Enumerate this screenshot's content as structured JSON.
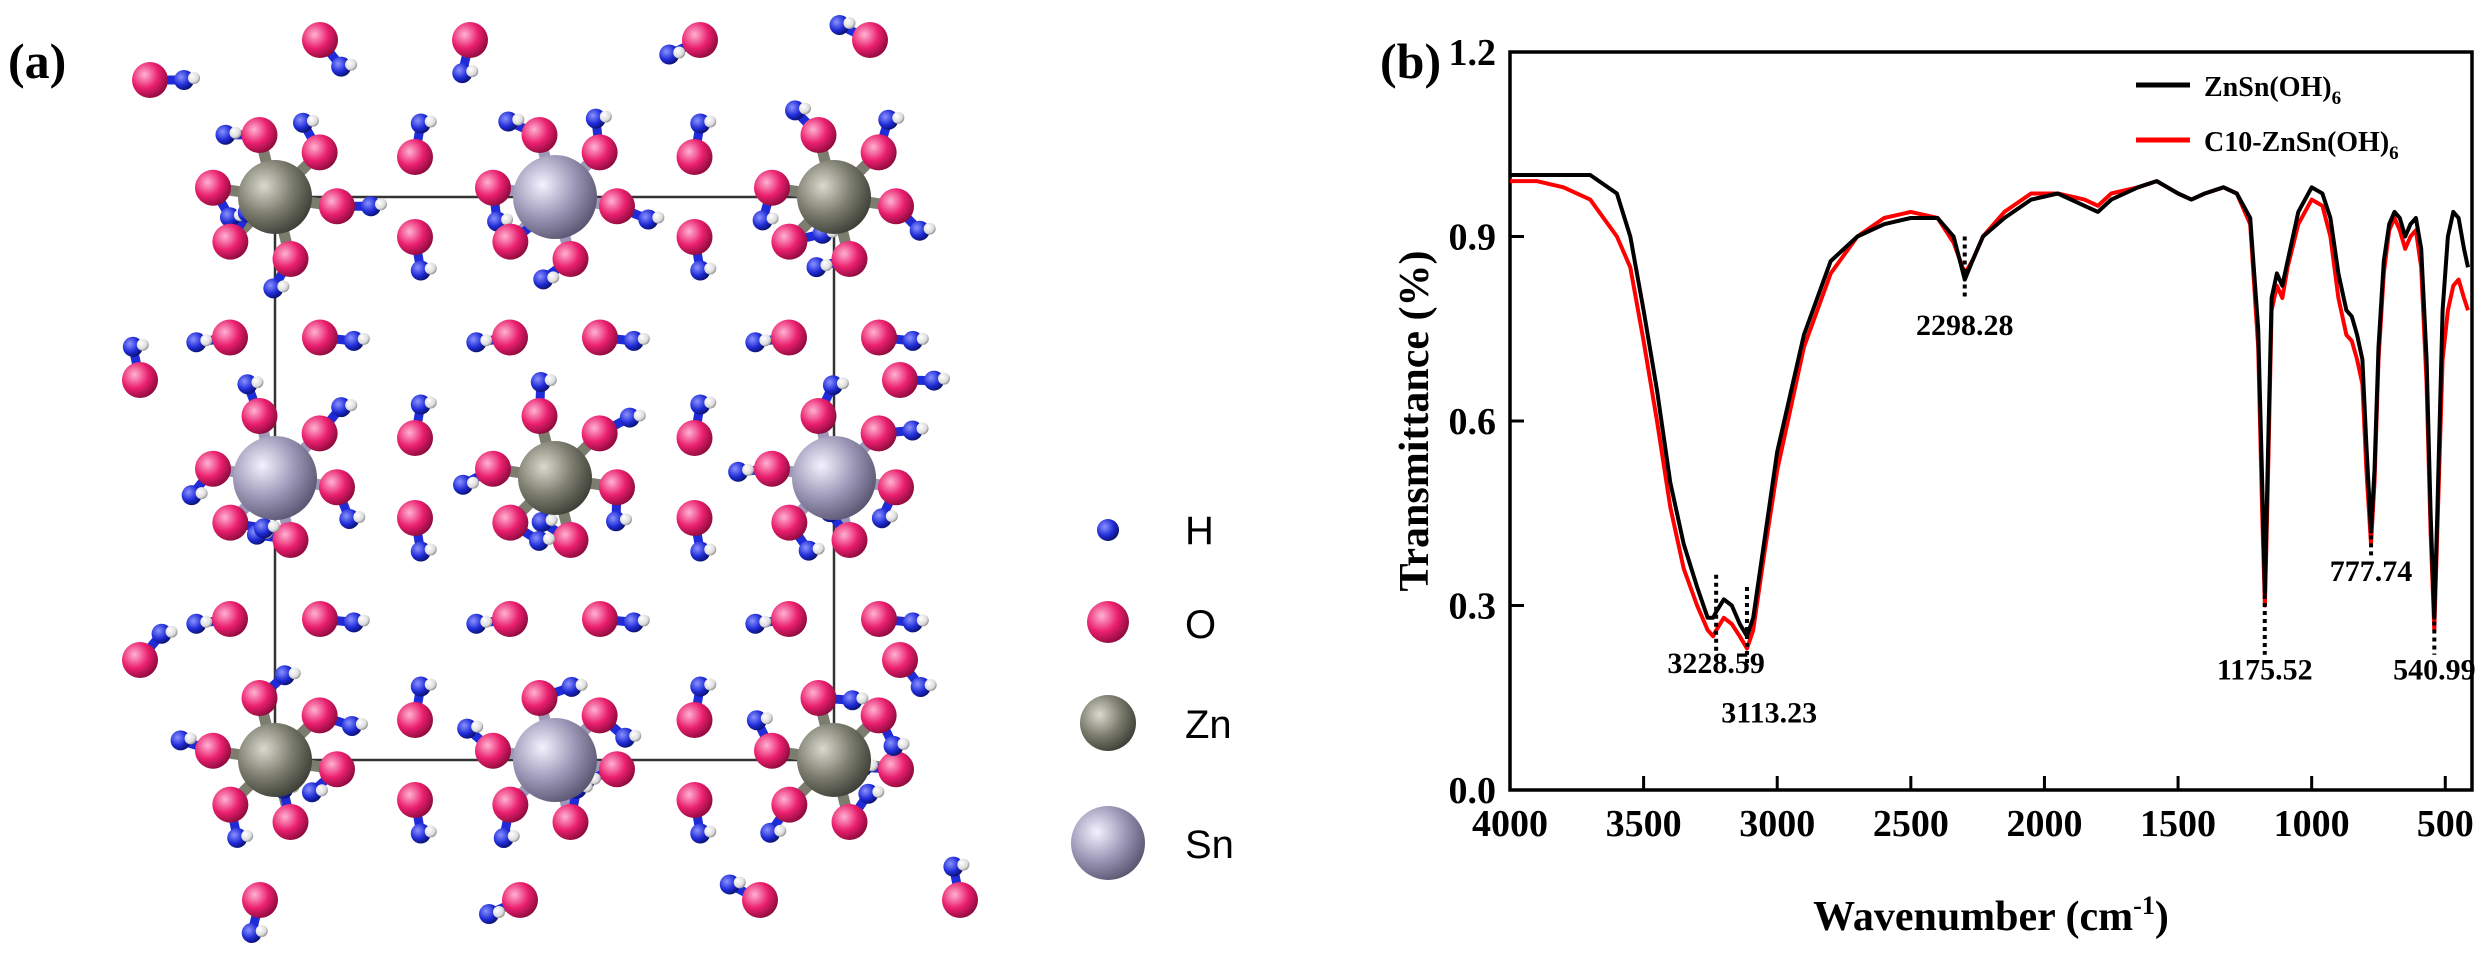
{
  "panel_a": {
    "label": "(a)",
    "legend": [
      {
        "label": "H",
        "color": "#1f2bd6"
      },
      {
        "label": "O",
        "color": "#ea1f6e"
      },
      {
        "label": "Zn",
        "color": "#7c7d6f"
      },
      {
        "label": "Sn",
        "color": "#9d98b7"
      }
    ]
  },
  "panel_b": {
    "label": "(b)",
    "legend": [
      {
        "label": "ZnSn(OH)",
        "sub": "6",
        "color": "#000000"
      },
      {
        "label": "C10-ZnSn(OH)",
        "sub": "6",
        "color": "#ff0000"
      }
    ],
    "peaks": [
      "3228.59",
      "3113.23",
      "2298.28",
      "1175.52",
      "777.74",
      "540.99"
    ]
  },
  "chart_data": {
    "type": "line",
    "title": "",
    "xlabel": "Wavenumber (cm-1)",
    "ylabel": "Transmittance (%)",
    "xlim": [
      4000,
      400
    ],
    "ylim": [
      0.0,
      1.2
    ],
    "xticks": [
      4000,
      3500,
      3000,
      2500,
      2000,
      1500,
      1000,
      500
    ],
    "yticks": [
      "0.0",
      "0.3",
      "0.6",
      "0.9",
      "1.2"
    ],
    "legend_position": "top-right",
    "series": [
      {
        "name": "ZnSn(OH)6",
        "color": "#000000",
        "points": [
          [
            4000,
            1.0
          ],
          [
            3800,
            1.0
          ],
          [
            3700,
            1.0
          ],
          [
            3600,
            0.97
          ],
          [
            3550,
            0.9
          ],
          [
            3500,
            0.78
          ],
          [
            3450,
            0.65
          ],
          [
            3400,
            0.5
          ],
          [
            3350,
            0.4
          ],
          [
            3300,
            0.33
          ],
          [
            3260,
            0.28
          ],
          [
            3240,
            0.28
          ],
          [
            3228,
            0.29
          ],
          [
            3200,
            0.31
          ],
          [
            3170,
            0.3
          ],
          [
            3140,
            0.27
          ],
          [
            3113,
            0.25
          ],
          [
            3090,
            0.28
          ],
          [
            3050,
            0.4
          ],
          [
            3000,
            0.55
          ],
          [
            2900,
            0.74
          ],
          [
            2800,
            0.86
          ],
          [
            2700,
            0.9
          ],
          [
            2600,
            0.92
          ],
          [
            2500,
            0.93
          ],
          [
            2400,
            0.93
          ],
          [
            2340,
            0.9
          ],
          [
            2298,
            0.83
          ],
          [
            2270,
            0.86
          ],
          [
            2230,
            0.9
          ],
          [
            2150,
            0.93
          ],
          [
            2050,
            0.96
          ],
          [
            1950,
            0.97
          ],
          [
            1850,
            0.95
          ],
          [
            1800,
            0.94
          ],
          [
            1750,
            0.96
          ],
          [
            1650,
            0.98
          ],
          [
            1580,
            0.99
          ],
          [
            1500,
            0.97
          ],
          [
            1450,
            0.96
          ],
          [
            1400,
            0.97
          ],
          [
            1330,
            0.98
          ],
          [
            1280,
            0.97
          ],
          [
            1230,
            0.93
          ],
          [
            1200,
            0.75
          ],
          [
            1185,
            0.5
          ],
          [
            1175,
            0.32
          ],
          [
            1165,
            0.52
          ],
          [
            1150,
            0.8
          ],
          [
            1130,
            0.84
          ],
          [
            1110,
            0.82
          ],
          [
            1090,
            0.86
          ],
          [
            1050,
            0.94
          ],
          [
            1000,
            0.98
          ],
          [
            960,
            0.97
          ],
          [
            930,
            0.93
          ],
          [
            900,
            0.84
          ],
          [
            870,
            0.78
          ],
          [
            850,
            0.77
          ],
          [
            830,
            0.74
          ],
          [
            810,
            0.7
          ],
          [
            795,
            0.56
          ],
          [
            778,
            0.42
          ],
          [
            765,
            0.52
          ],
          [
            750,
            0.72
          ],
          [
            730,
            0.86
          ],
          [
            710,
            0.92
          ],
          [
            690,
            0.94
          ],
          [
            670,
            0.93
          ],
          [
            650,
            0.9
          ],
          [
            630,
            0.92
          ],
          [
            610,
            0.93
          ],
          [
            590,
            0.88
          ],
          [
            570,
            0.7
          ],
          [
            555,
            0.45
          ],
          [
            541,
            0.28
          ],
          [
            530,
            0.45
          ],
          [
            510,
            0.78
          ],
          [
            490,
            0.9
          ],
          [
            470,
            0.94
          ],
          [
            450,
            0.93
          ],
          [
            430,
            0.88
          ],
          [
            415,
            0.85
          ]
        ]
      },
      {
        "name": "C10-ZnSn(OH)6",
        "color": "#ff0000",
        "points": [
          [
            4000,
            0.99
          ],
          [
            3900,
            0.99
          ],
          [
            3800,
            0.98
          ],
          [
            3700,
            0.96
          ],
          [
            3600,
            0.9
          ],
          [
            3550,
            0.85
          ],
          [
            3500,
            0.73
          ],
          [
            3450,
            0.6
          ],
          [
            3400,
            0.46
          ],
          [
            3350,
            0.36
          ],
          [
            3300,
            0.3
          ],
          [
            3260,
            0.26
          ],
          [
            3240,
            0.25
          ],
          [
            3228,
            0.26
          ],
          [
            3200,
            0.28
          ],
          [
            3170,
            0.27
          ],
          [
            3140,
            0.25
          ],
          [
            3113,
            0.23
          ],
          [
            3090,
            0.26
          ],
          [
            3050,
            0.38
          ],
          [
            3000,
            0.52
          ],
          [
            2900,
            0.72
          ],
          [
            2800,
            0.84
          ],
          [
            2700,
            0.9
          ],
          [
            2600,
            0.93
          ],
          [
            2500,
            0.94
          ],
          [
            2400,
            0.93
          ],
          [
            2340,
            0.89
          ],
          [
            2298,
            0.84
          ],
          [
            2270,
            0.86
          ],
          [
            2230,
            0.9
          ],
          [
            2150,
            0.94
          ],
          [
            2050,
            0.97
          ],
          [
            1950,
            0.97
          ],
          [
            1850,
            0.96
          ],
          [
            1800,
            0.95
          ],
          [
            1750,
            0.97
          ],
          [
            1650,
            0.98
          ],
          [
            1580,
            0.99
          ],
          [
            1500,
            0.97
          ],
          [
            1450,
            0.96
          ],
          [
            1400,
            0.97
          ],
          [
            1330,
            0.98
          ],
          [
            1280,
            0.97
          ],
          [
            1230,
            0.92
          ],
          [
            1200,
            0.72
          ],
          [
            1185,
            0.45
          ],
          [
            1175,
            0.3
          ],
          [
            1165,
            0.48
          ],
          [
            1150,
            0.78
          ],
          [
            1130,
            0.82
          ],
          [
            1110,
            0.8
          ],
          [
            1090,
            0.85
          ],
          [
            1050,
            0.92
          ],
          [
            1000,
            0.96
          ],
          [
            960,
            0.95
          ],
          [
            930,
            0.9
          ],
          [
            900,
            0.8
          ],
          [
            870,
            0.74
          ],
          [
            850,
            0.73
          ],
          [
            830,
            0.7
          ],
          [
            810,
            0.66
          ],
          [
            795,
            0.52
          ],
          [
            778,
            0.4
          ],
          [
            765,
            0.5
          ],
          [
            750,
            0.7
          ],
          [
            730,
            0.84
          ],
          [
            710,
            0.91
          ],
          [
            690,
            0.93
          ],
          [
            670,
            0.91
          ],
          [
            650,
            0.88
          ],
          [
            630,
            0.9
          ],
          [
            610,
            0.91
          ],
          [
            590,
            0.85
          ],
          [
            570,
            0.66
          ],
          [
            555,
            0.42
          ],
          [
            541,
            0.26
          ],
          [
            530,
            0.42
          ],
          [
            510,
            0.7
          ],
          [
            490,
            0.78
          ],
          [
            470,
            0.82
          ],
          [
            450,
            0.83
          ],
          [
            430,
            0.8
          ],
          [
            415,
            0.78
          ]
        ]
      }
    ]
  }
}
